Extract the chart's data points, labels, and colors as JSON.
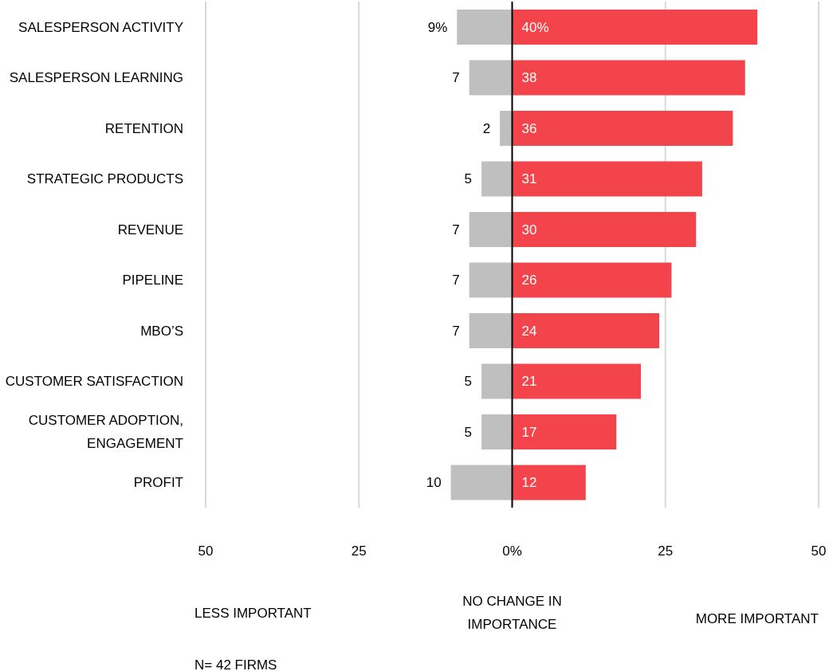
{
  "chart_data": {
    "type": "bar",
    "orientation": "horizontal",
    "categories": [
      "SALESPERSON ACTIVITY",
      "SALESPERSON LEARNING",
      "RETENTION",
      "STRATEGIC PRODUCTS",
      "REVENUE",
      "PIPELINE",
      "MBO’S",
      "CUSTOMER SATISFACTION",
      "CUSTOMER ADOPTION, ENGAGEMENT",
      "PROFIT"
    ],
    "series": [
      {
        "color": "#bfbfbf",
        "values": [
          9,
          7,
          2,
          5,
          7,
          7,
          7,
          5,
          5,
          10
        ],
        "base": [
          -9,
          -7,
          -2,
          -5,
          -7,
          -7,
          -7,
          -5,
          -5,
          -10
        ],
        "value_labels": [
          "9%",
          "7",
          "2",
          "5",
          "7",
          "7",
          "7",
          "5",
          "5",
          "10"
        ]
      },
      {
        "color": "#f2444a",
        "values": [
          40,
          38,
          36,
          31,
          30,
          26,
          24,
          21,
          17,
          12
        ],
        "value_labels": [
          "40%",
          "38",
          "36",
          "31",
          "30",
          "26",
          "24",
          "21",
          "17",
          "12"
        ]
      }
    ],
    "xlim": [
      -50,
      50
    ],
    "xticks": [
      {
        "value": -50,
        "label": "50"
      },
      {
        "value": -25,
        "label": "25"
      },
      {
        "value": 0,
        "label": "0%"
      },
      25,
      50
    ],
    "grid": "x",
    "legend": false,
    "ref_lines": [
      {
        "axis": "x",
        "value": 0,
        "color": "#000000"
      }
    ],
    "annotations": [
      "LESS IMPORTANT",
      "NO CHANGE IN IMPORTANCE",
      "MORE IMPORTANT",
      "N= 42 FIRMS"
    ]
  }
}
